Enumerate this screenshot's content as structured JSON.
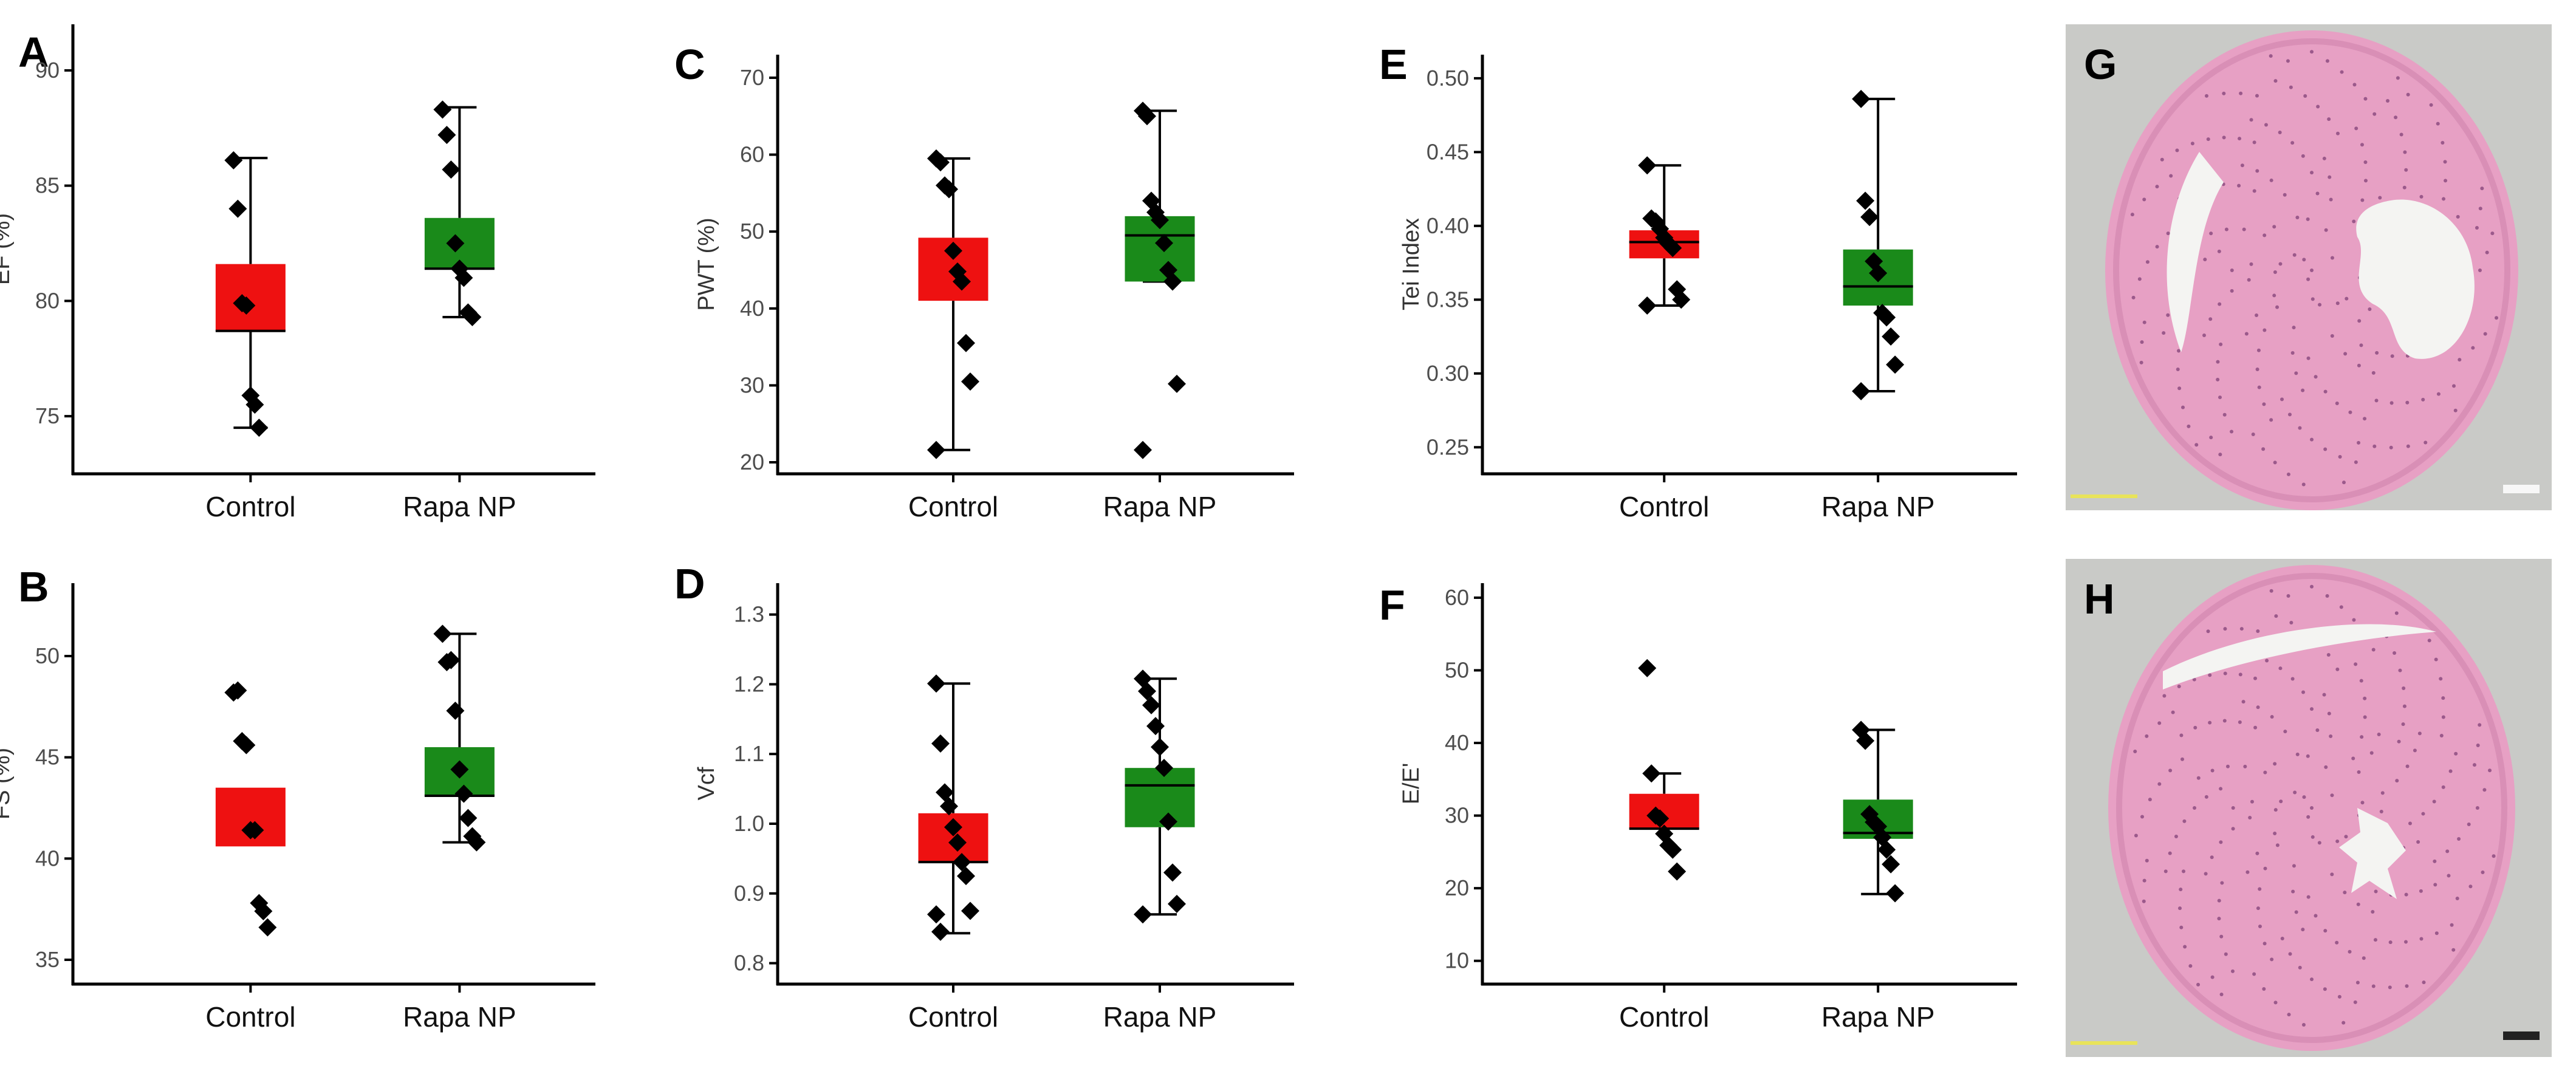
{
  "figure": {
    "colors": {
      "control": "#ee1111",
      "rapa": "#1a8a1a",
      "point": "#000000"
    },
    "images": [
      {
        "letter": "G",
        "desc_icon": "histology-image"
      },
      {
        "letter": "H",
        "desc_icon": "histology-image"
      }
    ]
  },
  "chart_data": [
    {
      "panel": "A",
      "type": "box",
      "ylabel": "EF (%)",
      "yticks": [
        75,
        80,
        85,
        90
      ],
      "ylim": [
        72.5,
        92
      ],
      "categories": [
        "Control",
        "Rapa NP"
      ],
      "boxes": [
        {
          "name": "Control",
          "whisker_low": 74.5,
          "q1": 78.7,
          "median": 78.7,
          "q3": 81.6,
          "whisker_high": 86.2,
          "points": [
            86.1,
            84.0,
            79.9,
            79.8,
            75.9,
            75.5,
            74.5
          ]
        },
        {
          "name": "Rapa NP",
          "whisker_low": 79.3,
          "q1": 81.4,
          "median": 81.4,
          "q3": 83.6,
          "whisker_high": 88.4,
          "points": [
            88.3,
            87.2,
            85.7,
            82.5,
            81.4,
            81.0,
            79.5,
            79.3
          ]
        }
      ]
    },
    {
      "panel": "B",
      "type": "box",
      "ylabel": "FS (%)",
      "yticks": [
        35,
        40,
        45,
        50
      ],
      "ylim": [
        33.8,
        53.6
      ],
      "categories": [
        "Control",
        "Rapa NP"
      ],
      "boxes": [
        {
          "name": "Control",
          "whisker_low": null,
          "q1": 40.6,
          "median": null,
          "q3": 43.5,
          "whisker_high": null,
          "points": [
            48.2,
            48.3,
            45.8,
            45.6,
            41.4,
            41.4,
            37.8,
            37.4,
            36.6
          ]
        },
        {
          "name": "Rapa NP",
          "whisker_low": 40.8,
          "q1": 43.1,
          "median": 43.1,
          "q3": 45.5,
          "whisker_high": 51.1,
          "points": [
            51.1,
            49.7,
            49.8,
            47.3,
            44.4,
            43.2,
            42.0,
            41.1,
            40.8
          ]
        }
      ]
    },
    {
      "panel": "C",
      "type": "box",
      "ylabel": "PWT (%)",
      "yticks": [
        20,
        30,
        40,
        50,
        60,
        70
      ],
      "ylim": [
        18.5,
        73
      ],
      "categories": [
        "Control",
        "Rapa NP"
      ],
      "boxes": [
        {
          "name": "Control",
          "whisker_low": 21.6,
          "q1": 41.0,
          "median": null,
          "q3": 49.2,
          "whisker_high": 59.5,
          "points": [
            59.5,
            59.0,
            56.0,
            55.5,
            47.5,
            44.8,
            43.5,
            35.5,
            30.5,
            21.6
          ]
        },
        {
          "name": "Rapa NP",
          "whisker_low": 43.5,
          "q1": 43.5,
          "median": 49.5,
          "q3": 52.0,
          "whisker_high": 65.7,
          "points": [
            65.7,
            65.0,
            54.0,
            52.5,
            51.5,
            48.5,
            45.0,
            43.5,
            30.2,
            21.6
          ]
        }
      ]
    },
    {
      "panel": "D",
      "type": "box",
      "ylabel": "Vcf",
      "yticks": [
        0.8,
        0.9,
        1.0,
        1.1,
        1.2,
        1.3
      ],
      "ylim": [
        0.77,
        1.345
      ],
      "categories": [
        "Control",
        "Rapa NP"
      ],
      "boxes": [
        {
          "name": "Control",
          "whisker_low": 0.843,
          "q1": 0.945,
          "median": 0.945,
          "q3": 1.015,
          "whisker_high": 1.201,
          "points": [
            1.201,
            1.115,
            1.045,
            1.025,
            0.995,
            0.973,
            0.945,
            0.925,
            0.875,
            0.87,
            0.845
          ]
        },
        {
          "name": "Rapa NP",
          "whisker_low": 0.87,
          "q1": 0.995,
          "median": 1.055,
          "q3": 1.08,
          "whisker_high": 1.208,
          "points": [
            1.208,
            1.19,
            1.17,
            1.14,
            1.11,
            1.08,
            1.003,
            0.93,
            0.885,
            0.87
          ]
        }
      ]
    },
    {
      "panel": "E",
      "type": "box",
      "ylabel": "Tei Index",
      "yticks": [
        0.25,
        0.3,
        0.35,
        0.4,
        0.45,
        0.5
      ],
      "ylim": [
        0.232,
        0.516
      ],
      "categories": [
        "Control",
        "Rapa NP"
      ],
      "boxes": [
        {
          "name": "Control",
          "whisker_low": 0.346,
          "q1": 0.378,
          "median": 0.389,
          "q3": 0.397,
          "whisker_high": 0.441,
          "points": [
            0.441,
            0.405,
            0.403,
            0.398,
            0.392,
            0.388,
            0.385,
            0.357,
            0.35,
            0.346
          ]
        },
        {
          "name": "Rapa NP",
          "whisker_low": 0.288,
          "q1": 0.346,
          "median": 0.359,
          "q3": 0.384,
          "whisker_high": 0.486,
          "points": [
            0.486,
            0.417,
            0.406,
            0.376,
            0.368,
            0.341,
            0.338,
            0.325,
            0.306,
            0.288
          ]
        }
      ]
    },
    {
      "panel": "F",
      "type": "box",
      "ylabel": "E/E'",
      "yticks": [
        10,
        20,
        30,
        40,
        50,
        60
      ],
      "ylim": [
        6.8,
        62
      ],
      "categories": [
        "Control",
        "Rapa NP"
      ],
      "boxes": [
        {
          "name": "Control",
          "whisker_low": null,
          "q1": 28.2,
          "median": 28.2,
          "q3": 33.0,
          "whisker_high": 35.8,
          "points": [
            50.3,
            35.8,
            30.0,
            29.6,
            27.5,
            25.9,
            25.3,
            22.3
          ]
        },
        {
          "name": "Rapa NP",
          "whisker_low": 19.2,
          "q1": 26.8,
          "median": 27.6,
          "q3": 32.2,
          "whisker_high": 41.8,
          "points": [
            41.8,
            40.3,
            30.2,
            29.1,
            28.5,
            27.0,
            25.3,
            23.3,
            19.3
          ]
        }
      ]
    }
  ]
}
